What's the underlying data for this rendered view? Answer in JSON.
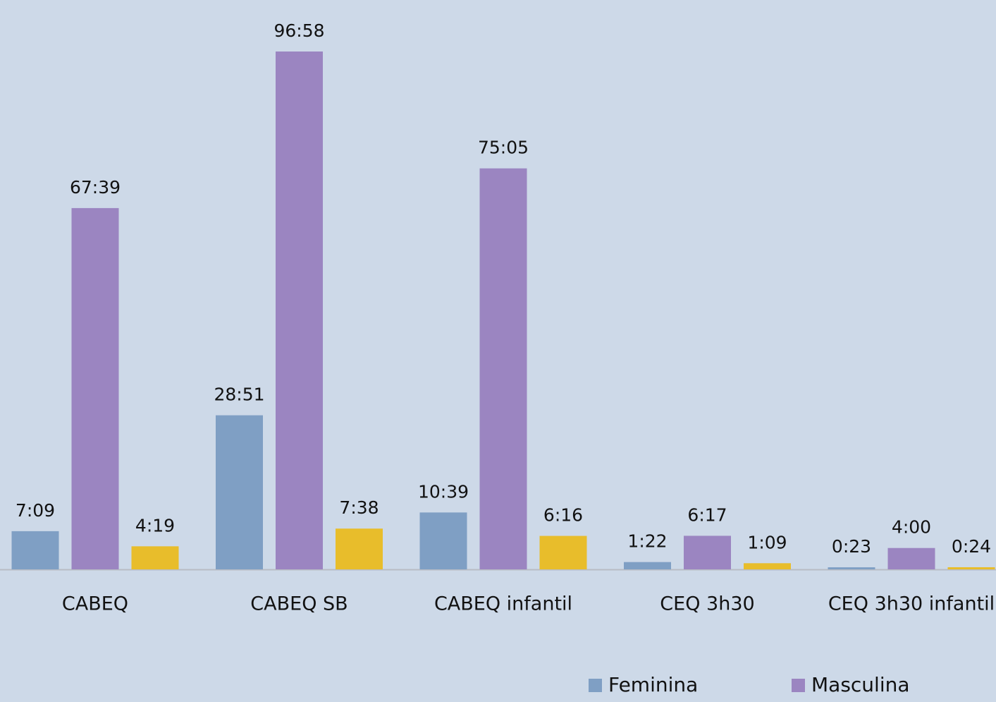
{
  "chart_data": {
    "type": "bar",
    "categories": [
      "CABEQ",
      "CABEQ SB",
      "CABEQ infantil",
      "CEQ 3h30",
      "CEQ 3h30 infantil"
    ],
    "series": [
      {
        "name": "Feminina",
        "color": "#7f9fc4",
        "values": [
          429,
          1731,
          639,
          82,
          23
        ],
        "value_labels": [
          "7:09",
          "28:51",
          "10:39",
          "1:22",
          "0:23"
        ]
      },
      {
        "name": "Masculina",
        "color": "#9b85c1",
        "values": [
          4059,
          5818,
          4505,
          377,
          240
        ],
        "value_labels": [
          "67:39",
          "96:58",
          "75:05",
          "6:17",
          "4:00"
        ]
      },
      {
        "color": "#e8bd2b",
        "values": [
          259,
          458,
          376,
          69,
          24
        ],
        "value_labels": [
          "4:19",
          "7:38",
          "6:16",
          "1:09",
          "0:24"
        ]
      }
    ],
    "legend": "bottom"
  }
}
